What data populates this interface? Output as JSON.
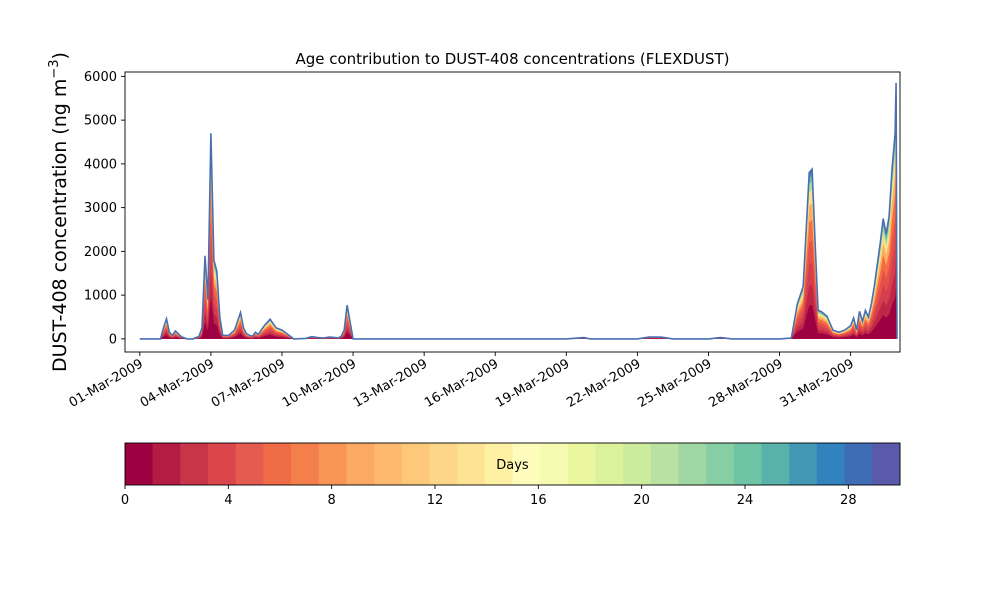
{
  "chart_data": {
    "type": "area",
    "title": "Age contribution to DUST-408 concentrations (FLEXDUST)",
    "ylabel_main": "DUST-408 concentration (ng m",
    "ylabel_sup": "−3",
    "ylabel_close": ")",
    "xlabel": "",
    "ylim": [
      -300,
      6100
    ],
    "xlim": [
      "2009-02-28T09:00",
      "2009-04-02T02:00"
    ],
    "yticks": [
      0,
      1000,
      2000,
      3000,
      4000,
      5000,
      6000
    ],
    "ytick_labels": [
      "0",
      "1000",
      "2000",
      "3000",
      "4000",
      "5000",
      "6000"
    ],
    "xticks": [
      "2009-03-01",
      "2009-03-04",
      "2009-03-07",
      "2009-03-10",
      "2009-03-13",
      "2009-03-16",
      "2009-03-19",
      "2009-03-22",
      "2009-03-25",
      "2009-03-28",
      "2009-03-31"
    ],
    "xtick_labels": [
      "01-Mar-2009",
      "04-Mar-2009",
      "07-Mar-2009",
      "10-Mar-2009",
      "13-Mar-2009",
      "16-Mar-2009",
      "19-Mar-2009",
      "22-Mar-2009",
      "25-Mar-2009",
      "28-Mar-2009",
      "31-Mar-2009"
    ],
    "grid": false,
    "total_series": {
      "x": [
        "2009-03-01T00:00",
        "2009-03-01T18:00",
        "2009-03-01T21:00",
        "2009-03-02T00:00",
        "2009-03-02T03:00",
        "2009-03-02T06:00",
        "2009-03-02T09:00",
        "2009-03-02T12:00",
        "2009-03-02T18:00",
        "2009-03-03T00:00",
        "2009-03-03T06:00",
        "2009-03-03T09:00",
        "2009-03-03T12:00",
        "2009-03-03T15:00",
        "2009-03-03T18:00",
        "2009-03-03T21:00",
        "2009-03-04T00:00",
        "2009-03-04T03:00",
        "2009-03-04T06:00",
        "2009-03-04T09:00",
        "2009-03-04T12:00",
        "2009-03-04T18:00",
        "2009-03-05T00:00",
        "2009-03-05T06:00",
        "2009-03-05T09:00",
        "2009-03-05T12:00",
        "2009-03-05T15:00",
        "2009-03-05T18:00",
        "2009-03-05T21:00",
        "2009-03-06T00:00",
        "2009-03-06T06:00",
        "2009-03-06T12:00",
        "2009-03-06T18:00",
        "2009-03-07T00:00",
        "2009-03-07T12:00",
        "2009-03-08T00:00",
        "2009-03-08T06:00",
        "2009-03-08T12:00",
        "2009-03-08T18:00",
        "2009-03-09T00:00",
        "2009-03-09T06:00",
        "2009-03-09T09:00",
        "2009-03-09T12:00",
        "2009-03-09T15:00",
        "2009-03-09T18:00",
        "2009-03-10T00:00",
        "2009-03-11T00:00",
        "2009-03-13T00:00",
        "2009-03-16T00:00",
        "2009-03-19T00:00",
        "2009-03-19T18:00",
        "2009-03-20T00:00",
        "2009-03-21T00:00",
        "2009-03-22T00:00",
        "2009-03-22T12:00",
        "2009-03-23T00:00",
        "2009-03-23T12:00",
        "2009-03-24T00:00",
        "2009-03-25T00:00",
        "2009-03-25T12:00",
        "2009-03-26T00:00",
        "2009-03-27T00:00",
        "2009-03-28T00:00",
        "2009-03-28T12:00",
        "2009-03-28T18:00",
        "2009-03-29T00:00",
        "2009-03-29T03:00",
        "2009-03-29T06:00",
        "2009-03-29T09:00",
        "2009-03-29T12:00",
        "2009-03-29T15:00",
        "2009-03-29T18:00",
        "2009-03-30T00:00",
        "2009-03-30T06:00",
        "2009-03-30T12:00",
        "2009-03-30T18:00",
        "2009-03-31T00:00",
        "2009-03-31T03:00",
        "2009-03-31T06:00",
        "2009-03-31T09:00",
        "2009-03-31T12:00",
        "2009-03-31T15:00",
        "2009-03-31T18:00",
        "2009-03-31T21:00",
        "2009-04-01T00:00",
        "2009-04-01T03:00",
        "2009-04-01T06:00",
        "2009-04-01T09:00",
        "2009-04-01T12:00",
        "2009-04-01T15:00",
        "2009-04-01T18:00",
        "2009-04-01T21:00",
        "2009-04-01T22:00",
        "2009-04-01T23:00"
      ],
      "y": [
        0,
        0,
        0,
        250,
        460,
        150,
        80,
        180,
        50,
        0,
        0,
        30,
        60,
        250,
        1900,
        900,
        4700,
        1800,
        1550,
        500,
        80,
        80,
        200,
        600,
        250,
        120,
        80,
        60,
        150,
        100,
        300,
        450,
        250,
        200,
        0,
        10,
        50,
        30,
        20,
        40,
        30,
        20,
        60,
        200,
        770,
        0,
        0,
        0,
        0,
        0,
        30,
        0,
        0,
        0,
        40,
        40,
        0,
        0,
        0,
        30,
        0,
        0,
        0,
        20,
        800,
        1200,
        2500,
        3800,
        3880,
        2200,
        650,
        630,
        520,
        200,
        150,
        200,
        300,
        480,
        200,
        630,
        400,
        650,
        500,
        800,
        1200,
        1700,
        2200,
        2750,
        2400,
        2800,
        3900,
        4700,
        5850,
        0
      ],
      "color": "#4a6fb0"
    },
    "colorbar": {
      "label": "Days",
      "min": 0,
      "max": 30,
      "ticks": [
        0,
        4,
        8,
        12,
        16,
        20,
        24,
        28
      ],
      "tick_labels": [
        "0",
        "4",
        "8",
        "12",
        "16",
        "20",
        "24",
        "28"
      ],
      "colors": [
        "#9e0142",
        "#b41c44",
        "#c93548",
        "#da464c",
        "#e65b4f",
        "#f06c46",
        "#f57f4b",
        "#f99457",
        "#fca966",
        "#feb96f",
        "#fdc87a",
        "#fed687",
        "#fee395",
        "#fff1a4",
        "#fefcbb",
        "#f5fbb0",
        "#eaf79f",
        "#dcf19b",
        "#cdeb9d",
        "#b8e1a2",
        "#9fd7a4",
        "#86cea4",
        "#6ec4a4",
        "#59b1ab",
        "#4198b4",
        "#3282bd",
        "#3f6db5",
        "#5a5aab"
      ]
    }
  }
}
